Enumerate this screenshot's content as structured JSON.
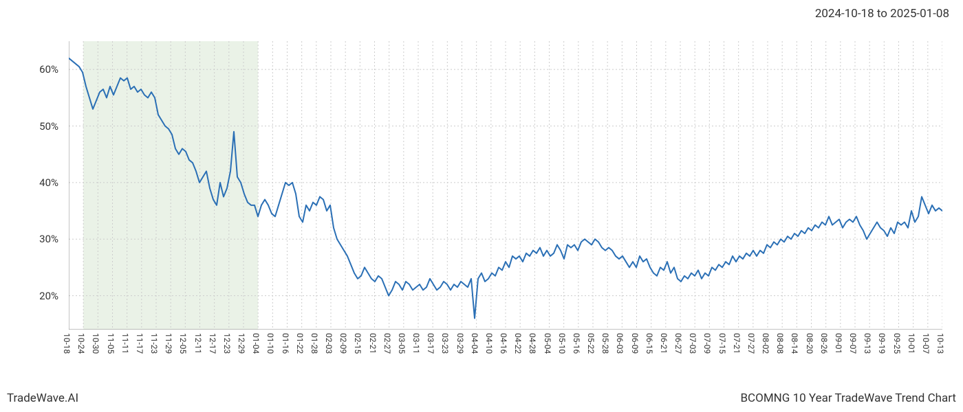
{
  "date_range_text": "2024-10-18 to 2025-01-08",
  "footer_left": "TradeWave.AI",
  "footer_right": "BCOMNG 10 Year TradeWave Trend Chart",
  "chart": {
    "type": "line",
    "background_color": "#ffffff",
    "line_color": "#2a6fb5",
    "line_width": 2,
    "grid_color": "#cccccc",
    "grid_dash": "2,3",
    "highlight_fill": "#d9e8d4",
    "highlight_opacity": 0.55,
    "border_color": "#888888",
    "label_color": "#333333",
    "y_axis": {
      "min": 14,
      "max": 65,
      "ticks": [
        20,
        30,
        40,
        50,
        60
      ],
      "suffix": "%",
      "fontsize": 15
    },
    "x_axis": {
      "labels": [
        "10-18",
        "10-24",
        "10-30",
        "11-05",
        "11-11",
        "11-17",
        "11-23",
        "11-29",
        "12-05",
        "12-11",
        "12-17",
        "12-23",
        "12-29",
        "01-04",
        "01-10",
        "01-16",
        "01-22",
        "01-28",
        "02-03",
        "02-09",
        "02-15",
        "02-21",
        "02-27",
        "03-05",
        "03-11",
        "03-17",
        "03-23",
        "03-29",
        "04-04",
        "04-10",
        "04-16",
        "04-22",
        "04-28",
        "05-04",
        "05-10",
        "05-16",
        "05-22",
        "05-28",
        "06-03",
        "06-09",
        "06-15",
        "06-21",
        "06-27",
        "07-03",
        "07-09",
        "07-15",
        "07-21",
        "07-27",
        "08-02",
        "08-08",
        "08-14",
        "08-20",
        "08-26",
        "09-01",
        "09-07",
        "09-13",
        "09-19",
        "09-25",
        "10-01",
        "10-07",
        "10-13"
      ],
      "fontsize": 12
    },
    "highlight_range": {
      "start_index": 1,
      "end_index": 13
    },
    "series": {
      "values": [
        62,
        61.5,
        61,
        60.5,
        59.5,
        57,
        55,
        53,
        54.5,
        56,
        56.5,
        55,
        57,
        55.5,
        57,
        58.5,
        58,
        58.5,
        56.5,
        57,
        56,
        56.5,
        55.5,
        55,
        56,
        55,
        52,
        51,
        50,
        49.5,
        48.5,
        46,
        45,
        46,
        45.5,
        44,
        43.5,
        42,
        40,
        41,
        42,
        39,
        37,
        36,
        40,
        37.5,
        39,
        42,
        49,
        41,
        40,
        38,
        36.5,
        36,
        36,
        34,
        36,
        37,
        36,
        34.5,
        34,
        36,
        38,
        40,
        39.5,
        40,
        38,
        34,
        33,
        36,
        35,
        36.5,
        36,
        37.5,
        37,
        35,
        36,
        32,
        30,
        29,
        28,
        27,
        25.5,
        24,
        23,
        23.5,
        25,
        24,
        23,
        22.5,
        23.5,
        23,
        21.5,
        20,
        21,
        22.5,
        22,
        21,
        22.5,
        22,
        21,
        21.5,
        22,
        21,
        21.5,
        23,
        22,
        21,
        21.5,
        22.5,
        22,
        21,
        22,
        21.5,
        22.5,
        22,
        21.5,
        23,
        16,
        23,
        24,
        22.5,
        23,
        24,
        23.5,
        25,
        24.5,
        26,
        25,
        27,
        26.5,
        27,
        26,
        27.5,
        27,
        28,
        27.5,
        28.5,
        27,
        28,
        27,
        27.5,
        29,
        28,
        26.5,
        29,
        28.5,
        29,
        28,
        29.5,
        30,
        29.5,
        29,
        30,
        29.5,
        28.5,
        28,
        28.5,
        28,
        27,
        26.5,
        27,
        26,
        25,
        26,
        25,
        27,
        26,
        26.5,
        25,
        24,
        23.5,
        25,
        24.5,
        26,
        24,
        25,
        23,
        22.5,
        23.5,
        23,
        24,
        23.5,
        24.5,
        23,
        24,
        23.5,
        25,
        24.5,
        25.5,
        25,
        26,
        25.5,
        27,
        26,
        27,
        26.5,
        27.5,
        27,
        28,
        27,
        28,
        27.5,
        29,
        28.5,
        29.5,
        29,
        30,
        29.5,
        30.5,
        30,
        31,
        30.5,
        31.5,
        31,
        32,
        31.5,
        32.5,
        32,
        33,
        32.5,
        34,
        32.5,
        33,
        33.5,
        32,
        33,
        33.5,
        33,
        34,
        32.5,
        31.5,
        30,
        31,
        32,
        33,
        32,
        31.5,
        30.5,
        32,
        31,
        33,
        32.5,
        33,
        32,
        35,
        33,
        34,
        37.5,
        36,
        34.5,
        36,
        35,
        35.5,
        35
      ]
    }
  }
}
